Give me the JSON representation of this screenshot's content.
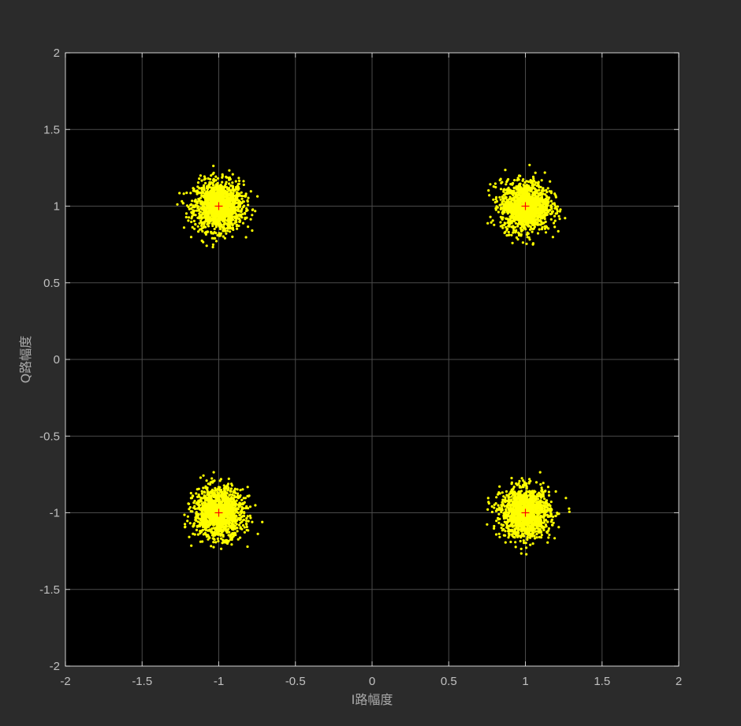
{
  "figure": {
    "background": "#2b2b2b"
  },
  "chart_data": {
    "type": "scatter",
    "title": "",
    "xlabel": "I路幅度",
    "ylabel": "Q路幅度",
    "xlim": [
      -2,
      2
    ],
    "ylim": [
      -2,
      2
    ],
    "xticks": [
      -2,
      -1.5,
      -1,
      -0.5,
      0,
      0.5,
      1,
      1.5,
      2
    ],
    "yticks": [
      -2,
      -1.5,
      -1,
      -0.5,
      0,
      0.5,
      1,
      1.5,
      2
    ],
    "xtick_labels": [
      "-2",
      "-1.5",
      "-1",
      "-0.5",
      "0",
      "0.5",
      "1",
      "1.5",
      "2"
    ],
    "ytick_labels": [
      "-2",
      "-1.5",
      "-1",
      "-0.5",
      "0",
      "0.5",
      "1",
      "1.5",
      "2"
    ],
    "grid": true,
    "legend": "none",
    "axes_background": "#000000",
    "axes_edge_color": "#ffffff",
    "grid_color": "#4a4a4a",
    "series": [
      {
        "kind": "received-symbol-clusters",
        "color": "#ffff00",
        "marker": "dot",
        "clusters": [
          {
            "center": [
              -1,
              1
            ],
            "spread": 0.08,
            "extent": 0.27
          },
          {
            "center": [
              1,
              1
            ],
            "spread": 0.08,
            "extent": 0.27
          },
          {
            "center": [
              -1,
              -1
            ],
            "spread": 0.08,
            "extent": 0.29
          },
          {
            "center": [
              1,
              -1
            ],
            "spread": 0.08,
            "extent": 0.29
          }
        ]
      },
      {
        "kind": "ideal-constellation",
        "color": "#ff0000",
        "marker": "+",
        "points": [
          [
            -1,
            1
          ],
          [
            1,
            1
          ],
          [
            -1,
            -1
          ],
          [
            1,
            -1
          ]
        ]
      }
    ]
  }
}
